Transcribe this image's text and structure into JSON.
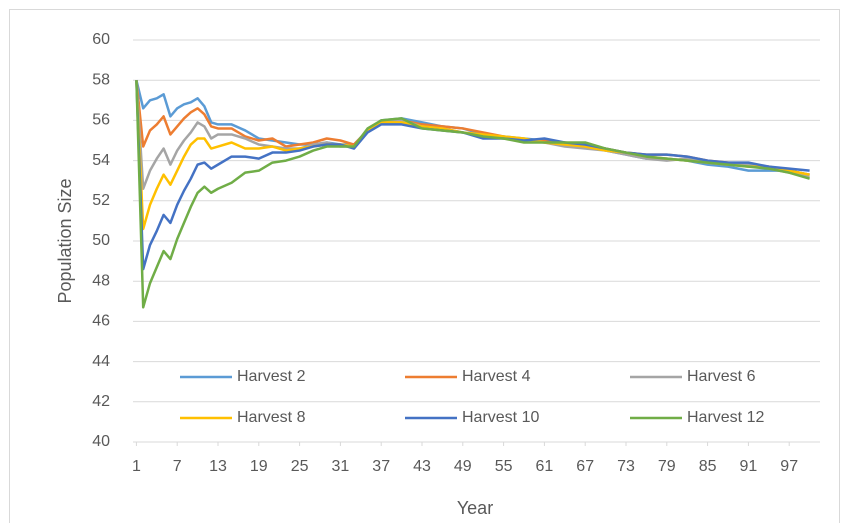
{
  "chart_data": {
    "type": "line",
    "x_label": "Year",
    "y_label": "Population Size",
    "x": [
      1,
      2,
      3,
      4,
      5,
      6,
      7,
      8,
      9,
      10,
      11,
      12,
      13,
      15,
      17,
      19,
      21,
      23,
      25,
      27,
      29,
      31,
      33,
      35,
      37,
      40,
      43,
      46,
      49,
      52,
      55,
      58,
      61,
      64,
      67,
      70,
      73,
      76,
      79,
      82,
      85,
      88,
      91,
      94,
      97,
      100
    ],
    "xlim": [
      0.5,
      100.5
    ],
    "xticks": [
      1,
      7,
      13,
      19,
      25,
      31,
      37,
      43,
      49,
      55,
      61,
      67,
      73,
      79,
      85,
      91,
      97
    ],
    "ylim": [
      40,
      60
    ],
    "yticks": [
      40,
      42,
      44,
      46,
      48,
      50,
      52,
      54,
      56,
      58,
      60
    ],
    "grid": true,
    "legend": "bottom",
    "series": [
      {
        "name": "Harvest 2",
        "color": "#5b9bd5",
        "values": [
          58,
          56.6,
          57,
          57.1,
          57.3,
          56.2,
          56.6,
          56.8,
          56.9,
          57.1,
          56.7,
          55.9,
          55.8,
          55.8,
          55.5,
          55.1,
          55,
          54.9,
          54.8,
          54.8,
          54.9,
          54.8,
          54.8,
          55.5,
          56,
          56.1,
          55.9,
          55.7,
          55.6,
          55.3,
          55.2,
          55.1,
          55,
          54.8,
          54.7,
          54.5,
          54.3,
          54.1,
          54.1,
          54,
          53.8,
          53.7,
          53.5,
          53.5,
          53.5,
          53.3
        ]
      },
      {
        "name": "Harvest 4",
        "color": "#ed7d31",
        "values": [
          58,
          54.7,
          55.5,
          55.8,
          56.2,
          55.3,
          55.7,
          56.1,
          56.4,
          56.6,
          56.3,
          55.7,
          55.6,
          55.6,
          55.2,
          55,
          55.1,
          54.7,
          54.8,
          54.9,
          55.1,
          55,
          54.8,
          55.5,
          55.9,
          56,
          55.8,
          55.7,
          55.6,
          55.4,
          55.2,
          55,
          55,
          54.9,
          54.7,
          54.6,
          54.4,
          54.3,
          54.3,
          54.2,
          54,
          53.9,
          53.8,
          53.7,
          53.5,
          53.3
        ]
      },
      {
        "name": "Harvest 6",
        "color": "#a5a5a5",
        "values": [
          58,
          52.6,
          53.5,
          54.1,
          54.6,
          53.8,
          54.5,
          55,
          55.4,
          55.9,
          55.7,
          55.1,
          55.3,
          55.3,
          55.1,
          54.8,
          54.7,
          54.6,
          54.6,
          54.8,
          54.9,
          54.7,
          54.7,
          55.5,
          56,
          56,
          55.7,
          55.6,
          55.4,
          55.2,
          55.1,
          55,
          54.9,
          54.7,
          54.6,
          54.5,
          54.3,
          54.1,
          54,
          54.1,
          53.9,
          53.8,
          53.8,
          53.6,
          53.4,
          53.2
        ]
      },
      {
        "name": "Harvest 8",
        "color": "#ffc000",
        "values": [
          58,
          50.6,
          51.8,
          52.6,
          53.3,
          52.8,
          53.5,
          54.2,
          54.8,
          55.1,
          55.1,
          54.6,
          54.7,
          54.9,
          54.6,
          54.6,
          54.7,
          54.5,
          54.6,
          54.7,
          54.8,
          54.8,
          54.7,
          55.5,
          55.9,
          55.9,
          55.7,
          55.6,
          55.4,
          55.3,
          55.2,
          55.1,
          54.9,
          54.8,
          54.7,
          54.5,
          54.4,
          54.2,
          54.1,
          54,
          53.9,
          53.8,
          53.7,
          53.7,
          53.5,
          53.3
        ]
      },
      {
        "name": "Harvest 10",
        "color": "#4472c4",
        "values": [
          58,
          48.6,
          49.8,
          50.5,
          51.3,
          50.9,
          51.8,
          52.5,
          53.1,
          53.8,
          53.9,
          53.6,
          53.8,
          54.2,
          54.2,
          54.1,
          54.4,
          54.4,
          54.5,
          54.7,
          54.8,
          54.8,
          54.6,
          55.4,
          55.8,
          55.8,
          55.6,
          55.5,
          55.4,
          55.1,
          55.1,
          55,
          55.1,
          54.9,
          54.8,
          54.6,
          54.4,
          54.3,
          54.3,
          54.2,
          54,
          53.9,
          53.9,
          53.7,
          53.6,
          53.5
        ]
      },
      {
        "name": "Harvest 12",
        "color": "#70ad47",
        "values": [
          58,
          46.7,
          47.9,
          48.7,
          49.5,
          49.1,
          50.1,
          50.9,
          51.7,
          52.4,
          52.7,
          52.4,
          52.6,
          52.9,
          53.4,
          53.5,
          53.9,
          54,
          54.2,
          54.5,
          54.7,
          54.7,
          54.7,
          55.6,
          56,
          56.1,
          55.6,
          55.5,
          55.4,
          55.2,
          55.1,
          54.9,
          54.9,
          54.9,
          54.9,
          54.6,
          54.4,
          54.2,
          54.1,
          54,
          53.9,
          53.8,
          53.7,
          53.6,
          53.4,
          53.1
        ]
      }
    ]
  }
}
